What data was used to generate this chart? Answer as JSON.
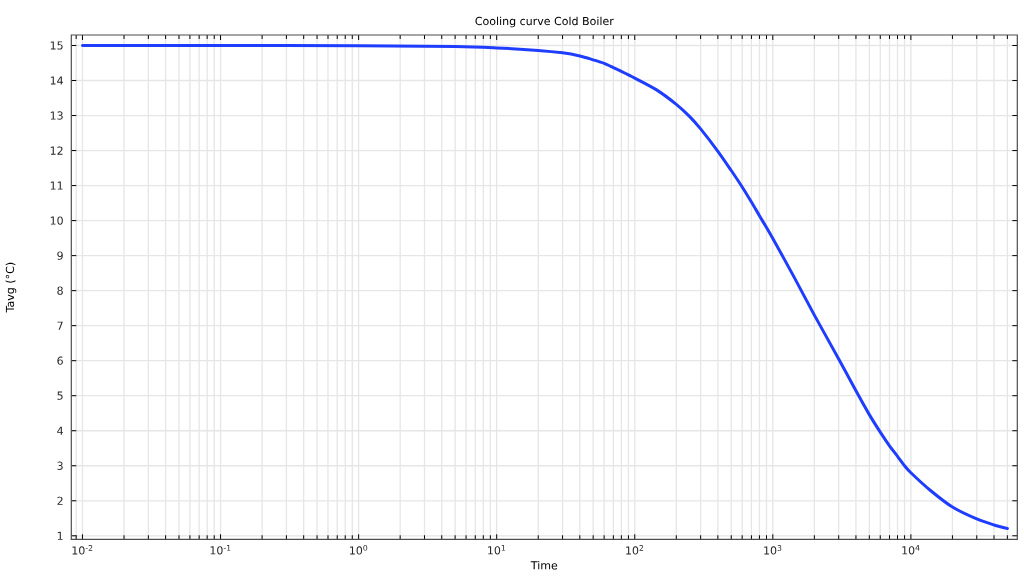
{
  "chart_data": {
    "type": "line",
    "title": "Cooling curve Cold Boiler",
    "xlabel": "Time",
    "ylabel": "Tavg (°C)",
    "log": "x",
    "grid": true,
    "line_style": "solid",
    "marker": "none",
    "xlim": [
      0.0083,
      59000
    ],
    "ylim": [
      0.9,
      15.3
    ],
    "xticks": [
      {
        "value": 0.01,
        "label": "10$^{-2}$"
      },
      {
        "value": 0.1,
        "label": "10$^{-1}$"
      },
      {
        "value": 1,
        "label": "10$^{0}$"
      },
      {
        "value": 10,
        "label": "10$^{1}$"
      },
      {
        "value": 100,
        "label": "10$^{2}$"
      },
      {
        "value": 1000,
        "label": "10$^{3}$"
      },
      {
        "value": 10000,
        "label": "10$^{4}$"
      }
    ],
    "yticks": [
      1,
      2,
      3,
      4,
      5,
      6,
      7,
      8,
      9,
      10,
      11,
      12,
      13,
      14,
      15
    ],
    "x": [
      0.01,
      0.1,
      1,
      5,
      10,
      20,
      30,
      40,
      50,
      60,
      70,
      80,
      90,
      100,
      143,
      200,
      250,
      300,
      400,
      500,
      600,
      700,
      800,
      900,
      1000,
      1420,
      2000,
      3000,
      4000,
      5000,
      6000,
      7000,
      8000,
      9000,
      10000,
      13800,
      20000,
      30000,
      40000,
      50000
    ],
    "series": [
      {
        "color": "#1f3dff",
        "values": [
          15.0,
          15.0,
          14.99,
          14.97,
          14.93,
          14.86,
          14.79,
          14.7,
          14.59,
          14.49,
          14.37,
          14.26,
          14.16,
          14.07,
          13.74,
          13.32,
          12.97,
          12.62,
          11.98,
          11.43,
          10.96,
          10.53,
          10.14,
          9.8,
          9.49,
          8.4,
          7.3,
          6.05,
          5.14,
          4.46,
          3.96,
          3.57,
          3.27,
          3.0,
          2.8,
          2.3,
          1.82,
          1.48,
          1.31,
          1.21
        ]
      }
    ]
  }
}
